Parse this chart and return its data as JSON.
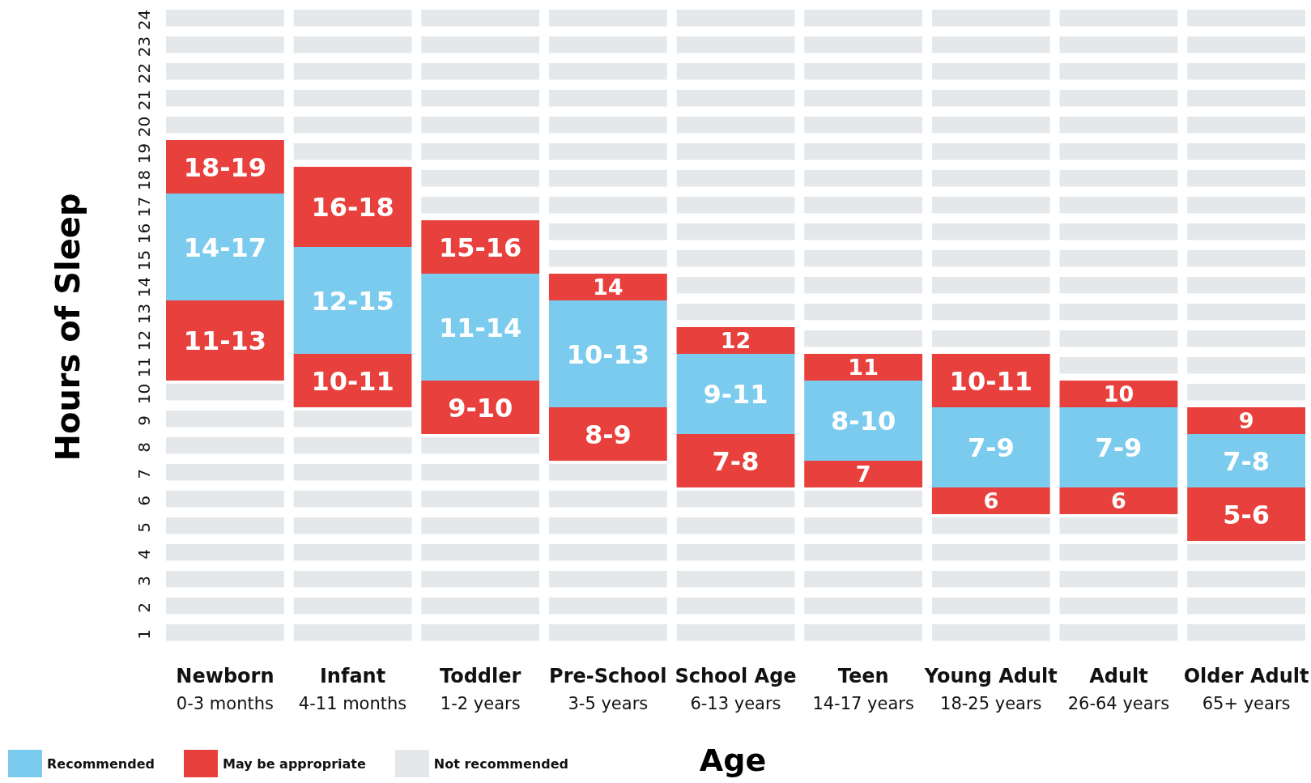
{
  "chart_data": {
    "type": "bar",
    "stacked": true,
    "xlabel": "Age",
    "ylabel": "Hours of Sleep",
    "categories": [
      "Newborn\n0-3 months",
      "Infant\n4-11 months",
      "Toddler\n1-2 years",
      "Pre-School\n3-5 years",
      "School Age\n6-13 years",
      "Teen\n14-17 years",
      "Young Adult\n18-25 years",
      "Adult\n26-64 years",
      "Older Adult\n65+ years"
    ],
    "ylim": [
      0,
      24
    ],
    "yticks": [
      {
        "value": 0.5,
        "label": "1"
      },
      {
        "value": 1.5,
        "label": "2"
      },
      {
        "value": 2.5,
        "label": "3"
      },
      {
        "value": 3.5,
        "label": "4"
      },
      {
        "value": 4.5,
        "label": "5"
      },
      {
        "value": 5.5,
        "label": "6"
      },
      {
        "value": 6.5,
        "label": "7"
      },
      {
        "value": 7.5,
        "label": "8"
      },
      {
        "value": 8.5,
        "label": "9"
      },
      {
        "value": 9.5,
        "label": "10"
      },
      {
        "value": 10.5,
        "label": "11"
      },
      {
        "value": 11.5,
        "label": "12"
      },
      {
        "value": 12.5,
        "label": "13"
      },
      {
        "value": 13.5,
        "label": "14"
      },
      {
        "value": 14.5,
        "label": "15"
      },
      {
        "value": 15.5,
        "label": "16"
      },
      {
        "value": 16.5,
        "label": "17"
      },
      {
        "value": 17.5,
        "label": "18"
      },
      {
        "value": 18.5,
        "label": "19"
      },
      {
        "value": 19.5,
        "label": "20"
      },
      {
        "value": 20.5,
        "label": "21"
      },
      {
        "value": 21.5,
        "label": "22"
      },
      {
        "value": 22.5,
        "label": "23"
      },
      {
        "value": 23.5,
        "label": "24"
      }
    ],
    "legend": "bottom left",
    "series": [
      {
        "color": "#e4e8eb",
        "values": [
          10,
          9,
          8,
          7,
          6,
          6,
          5,
          5,
          4
        ]
      },
      {
        "color": "#e8403c",
        "values": [
          3,
          2,
          2,
          2,
          2,
          1,
          1,
          1,
          2
        ]
      },
      {
        "name": "Recommended",
        "color": "#7bcbee",
        "values": [
          4,
          4,
          4,
          4,
          3,
          3,
          3,
          3,
          2
        ]
      },
      {
        "name": "May be appropriate",
        "color": "#e8403c",
        "values": [
          2,
          3,
          2,
          1,
          1,
          1,
          2,
          1,
          1
        ]
      },
      {
        "name": "Not recommended",
        "color": "#e4e8eb",
        "values": [
          5,
          6,
          8,
          10,
          12,
          13,
          13,
          14,
          15
        ]
      }
    ],
    "annotations": [
      {
        "text": "11-13",
        "x": "Newborn\n0-3 months",
        "y": 13
      },
      {
        "text": "14-17",
        "x": "Newborn\n0-3 months",
        "y": 17
      },
      {
        "text": "18-19",
        "x": "Newborn\n0-3 months",
        "y": 19
      },
      {
        "text": "10-11",
        "x": "Infant\n4-11 months",
        "y": 11
      },
      {
        "text": "12-15",
        "x": "Infant\n4-11 months",
        "y": 15
      },
      {
        "text": "16-18",
        "x": "Infant\n4-11 months",
        "y": 18
      },
      {
        "text": "9-10",
        "x": "Toddler\n1-2 years",
        "y": 10
      },
      {
        "text": "11-14",
        "x": "Toddler\n1-2 years",
        "y": 14
      },
      {
        "text": "15-16",
        "x": "Toddler\n1-2 years",
        "y": 16
      },
      {
        "text": "8-9",
        "x": "Pre-School\n3-5 years",
        "y": 9
      },
      {
        "text": "10-13",
        "x": "Pre-School\n3-5 years",
        "y": 13
      },
      {
        "text": "14",
        "x": "Pre-School\n3-5 years",
        "y": 14
      },
      {
        "text": "7-8",
        "x": "School Age\n6-13 years",
        "y": 8
      },
      {
        "text": "9-11",
        "x": "School Age\n6-13 years",
        "y": 11
      },
      {
        "text": "12",
        "x": "School Age\n6-13 years",
        "y": 12
      },
      {
        "text": "7",
        "x": "Teen\n14-17 years",
        "y": 7
      },
      {
        "text": "8-10",
        "x": "Teen\n14-17 years",
        "y": 10
      },
      {
        "text": "11",
        "x": "Teen\n14-17 years",
        "y": 11
      },
      {
        "text": "6",
        "x": "Young Adult\n18-25 years",
        "y": 6
      },
      {
        "text": "7-9",
        "x": "Young Adult\n18-25 years",
        "y": 9
      },
      {
        "text": "10-11",
        "x": "Young Adult\n18-25 years",
        "y": 11
      },
      {
        "text": "6",
        "x": "Adult\n26-64 years",
        "y": 6
      },
      {
        "text": "7-9",
        "x": "Adult\n26-64 years",
        "y": 9
      },
      {
        "text": "10",
        "x": "Adult\n26-64 years",
        "y": 10
      },
      {
        "text": "5-6",
        "x": "Older Adult\n65+ years",
        "y": 6
      },
      {
        "text": "7-8",
        "x": "Older Adult\n65+ years",
        "y": 8
      },
      {
        "text": "9",
        "x": "Older Adult\n65+ years",
        "y": 9
      }
    ]
  }
}
